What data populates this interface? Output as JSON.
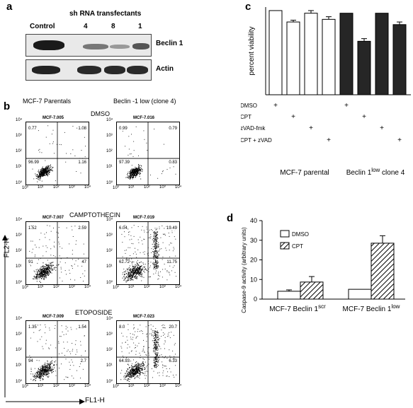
{
  "panel_a": {
    "letter": "a",
    "header": "sh RNA transfectants",
    "lanes": [
      "Control",
      "4",
      "8",
      "1"
    ],
    "row_labels": [
      "Beclin 1",
      "Actin"
    ]
  },
  "panel_b": {
    "letter": "b",
    "col_titles": [
      "MCF-7 Parentals",
      "Beclin -1 low (clone 4)"
    ],
    "y_axis": "FL2-H",
    "x_axis": "FL1-H",
    "ticks": [
      "10⁰",
      "10¹",
      "10²",
      "10³",
      "10⁴"
    ],
    "rows": [
      {
        "title": "DMSO",
        "plots": [
          {
            "id": "MCF-7.005",
            "ul": "0.77",
            "ur": "1.08",
            "ll": "96.99",
            "lr": "1.16"
          },
          {
            "id": "MCF-7.016",
            "ul": "0.99",
            "ur": "0.79",
            "ll": "97.39",
            "lr": "0.83"
          }
        ]
      },
      {
        "title": "CAMPTOTHECIN",
        "plots": [
          {
            "id": "MCF-7.007",
            "ul": "1.52",
            "ur": "2.59",
            "ll": "91",
            "lr": "47"
          },
          {
            "id": "MCF-7.019",
            "ul": "6.04",
            "ur": "19.49",
            "ll": "62.72",
            "lr": "11.75"
          }
        ]
      },
      {
        "title": "ETOPOSIDE",
        "plots": [
          {
            "id": "MCF-7.009",
            "ul": "1.35",
            "ur": "1.54",
            "ll": "94",
            "lr": "2.7"
          },
          {
            "id": "MCF-7.023",
            "ul": "8.0",
            "ur": "20.7",
            "ll": "64.93",
            "lr": "6.33"
          }
        ]
      }
    ]
  },
  "panel_c": {
    "letter": "c",
    "ylabel": "percent viability",
    "treatments": [
      "DMSO",
      "CPT",
      "zVAD-fmk",
      "CPT + zVAD"
    ],
    "group_labels": [
      "MCF-7 parental",
      "Beclin 1low clone 4"
    ],
    "group2_base": "Beclin 1",
    "group2_sup": "low",
    "group2_rest": " clone 4"
  },
  "panel_d": {
    "letter": "d",
    "ylabel": "Caspase-9 activity (arbitrary units)",
    "legend": [
      "DMSO",
      "CPT"
    ],
    "groups": [
      {
        "base": "MCF-7 Beclin 1",
        "sup": "scr"
      },
      {
        "base": "MCF-7 Beclin 1",
        "sup": "low"
      }
    ]
  },
  "chart_data": [
    {
      "type": "bar",
      "ylabel": "percent viability",
      "ylim": [
        0,
        100
      ],
      "categories": [
        "DMSO",
        "CPT",
        "zVAD-fmk",
        "CPT + zVAD"
      ],
      "series": [
        {
          "name": "MCF-7 parental",
          "values": [
            96,
            83,
            93,
            86
          ],
          "errors": [
            0,
            2,
            3,
            3
          ],
          "color": "#ffffff"
        },
        {
          "name": "Beclin 1low clone 4",
          "values": [
            93,
            61,
            93,
            80
          ],
          "errors": [
            0,
            3,
            0,
            3
          ],
          "color": "#262626"
        }
      ],
      "grid": false
    },
    {
      "type": "bar",
      "ylabel": "Caspase-9 activity (arbitrary units)",
      "ylim": [
        0,
        40
      ],
      "yticks": [
        0,
        10,
        20,
        30,
        40
      ],
      "categories": [
        "MCF-7 Beclin 1scr",
        "MCF-7 Beclin 1low"
      ],
      "series": [
        {
          "name": "DMSO",
          "values": [
            4,
            5
          ],
          "errors": [
            0.7,
            0
          ],
          "color": "#ffffff"
        },
        {
          "name": "CPT",
          "values": [
            8.7,
            28.5
          ],
          "errors": [
            2.8,
            3.8
          ],
          "pattern": "hatched"
        }
      ],
      "legend": "top-left",
      "grid": false
    }
  ]
}
